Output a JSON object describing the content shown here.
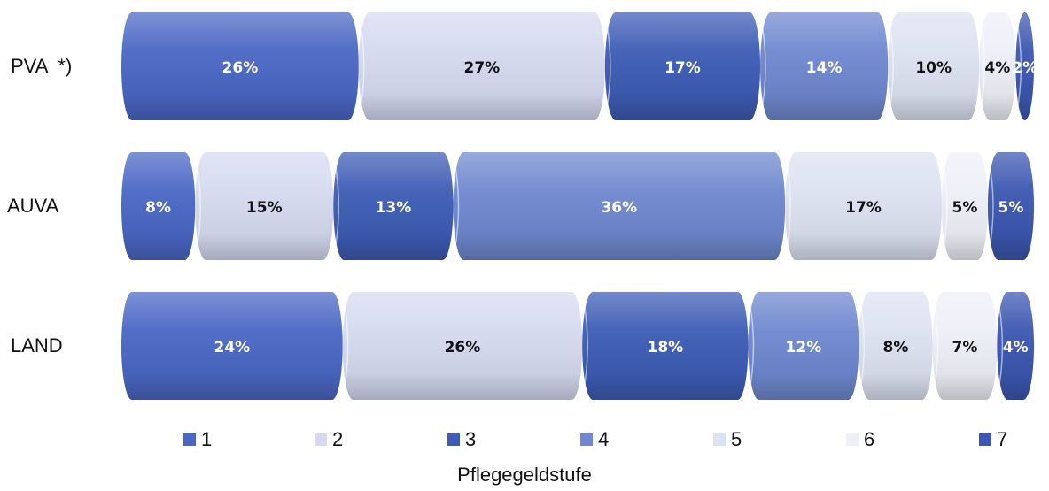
{
  "chart_data": {
    "type": "bar",
    "orientation": "horizontal",
    "stacked": "100%",
    "categories": [
      "PVA  *)",
      "AUVA",
      "LAND"
    ],
    "series": [
      {
        "name": "1",
        "values": [
          26,
          8,
          24
        ],
        "labels": [
          "26%",
          "8%",
          "24%"
        ]
      },
      {
        "name": "2",
        "values": [
          27,
          15,
          26
        ],
        "labels": [
          "27%",
          "15%",
          "26%"
        ]
      },
      {
        "name": "3",
        "values": [
          17,
          13,
          18
        ],
        "labels": [
          "17%",
          "13%",
          "18%"
        ]
      },
      {
        "name": "4",
        "values": [
          14,
          36,
          12
        ],
        "labels": [
          "14%",
          "36%",
          "12%"
        ]
      },
      {
        "name": "5",
        "values": [
          10,
          17,
          8
        ],
        "labels": [
          "10%",
          "17%",
          "8%"
        ]
      },
      {
        "name": "6",
        "values": [
          4,
          5,
          7
        ],
        "labels": [
          "4%",
          "5%",
          "7%"
        ]
      },
      {
        "name": "7",
        "values": [
          2,
          5,
          4
        ],
        "labels": [
          "2%",
          "5%",
          "4%"
        ]
      }
    ],
    "colors": [
      "#4a67c4",
      "#d5daf0",
      "#3d5cb5",
      "#6f88cf",
      "#dde2f2",
      "#eef0f8",
      "#3b57b0"
    ],
    "label_colors": [
      "#ffffff",
      "#111111",
      "#ffffff",
      "#ffffff",
      "#111111",
      "#111111",
      "#ffffff"
    ],
    "xlabel": "Pflegegeldstufe",
    "ylabel": "",
    "legend_position": "bottom",
    "grid": false
  }
}
